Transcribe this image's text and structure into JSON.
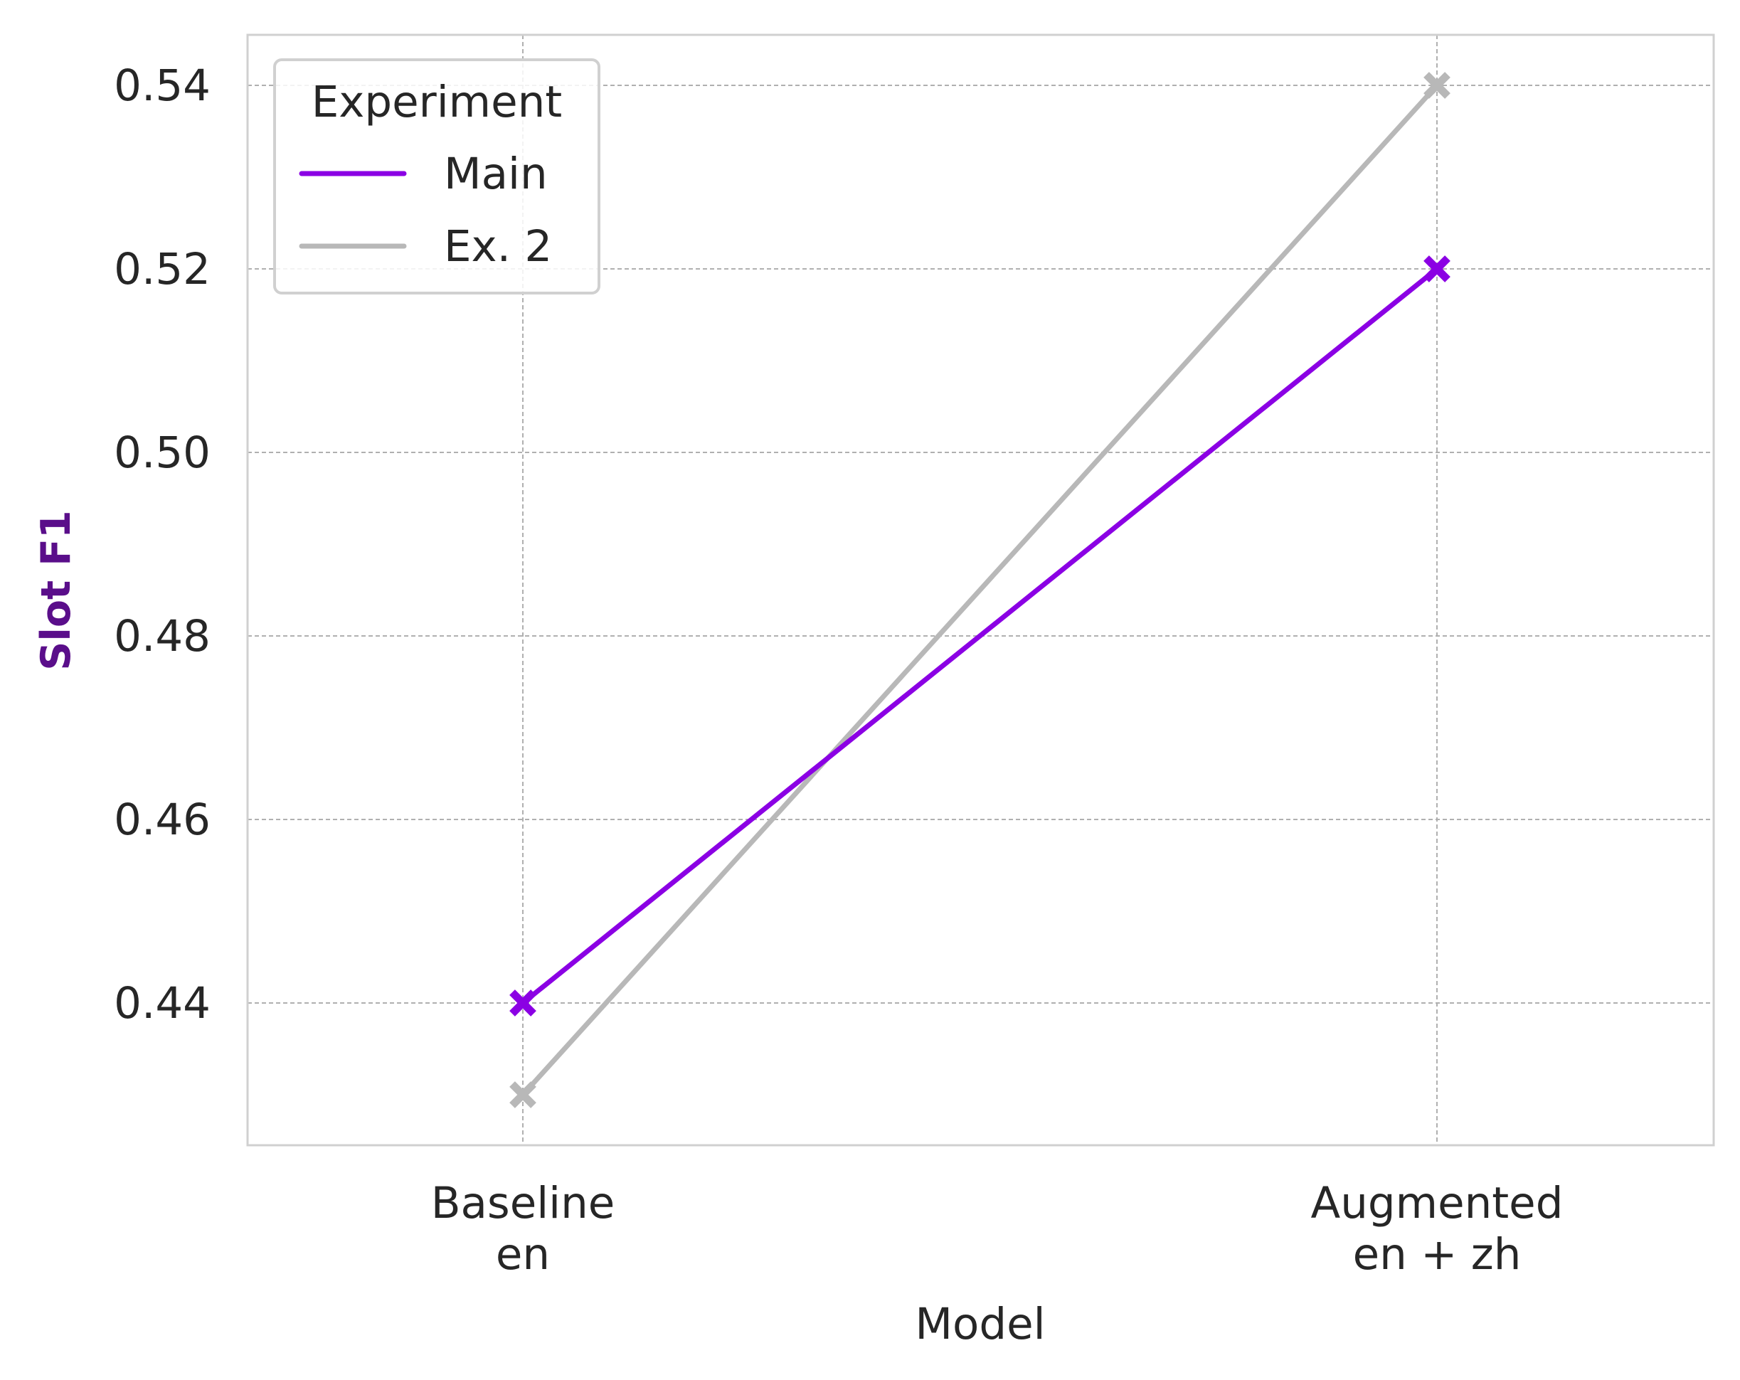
{
  "chart_data": {
    "type": "line",
    "xlabel": "Model",
    "ylabel": "Slot F1",
    "ylabel_color": "#5a0e8a",
    "categories": [
      [
        "Baseline",
        "en"
      ],
      [
        "Augmented",
        "en + zh"
      ]
    ],
    "ylim": [
      0.4245,
      0.5455
    ],
    "yticks": [
      0.44,
      0.46,
      0.48,
      0.5,
      0.52,
      0.54
    ],
    "ytick_labels": [
      "0.44",
      "0.46",
      "0.48",
      "0.50",
      "0.52",
      "0.54"
    ],
    "grid": true,
    "marker": "x",
    "legend": {
      "title": "Experiment",
      "position": "upper-left"
    },
    "series": [
      {
        "name": "Main",
        "values": [
          0.44,
          0.52
        ],
        "color": "#8b00e4"
      },
      {
        "name": "Ex. 2",
        "values": [
          0.43,
          0.54
        ],
        "color": "#b8b8b8"
      }
    ]
  }
}
